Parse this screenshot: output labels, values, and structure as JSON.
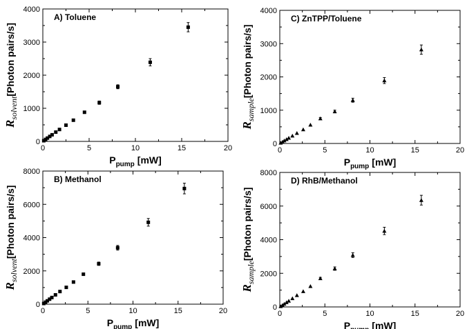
{
  "chart_data": [
    {
      "id": "A",
      "type": "scatter",
      "marker": "square",
      "title": "A) Toluene",
      "xlabel": {
        "main": "P",
        "sub": "pump",
        "unit": "[mW]"
      },
      "ylabel": {
        "main": "R",
        "sub": "solvent",
        "unit": "[Photon pairs/s]"
      },
      "xlim": [
        0,
        20
      ],
      "ylim": [
        0,
        4000
      ],
      "xticks": [
        0,
        5,
        10,
        15,
        20
      ],
      "yticks": [
        0,
        1000,
        2000,
        3000,
        4000
      ],
      "grid": false,
      "points": [
        {
          "x": 0.1,
          "y": 20,
          "err": 0
        },
        {
          "x": 0.3,
          "y": 60,
          "err": 0
        },
        {
          "x": 0.5,
          "y": 100,
          "err": 0
        },
        {
          "x": 0.75,
          "y": 150,
          "err": 0
        },
        {
          "x": 1.0,
          "y": 200,
          "err": 0
        },
        {
          "x": 1.4,
          "y": 280,
          "err": 0
        },
        {
          "x": 1.8,
          "y": 360,
          "err": 0
        },
        {
          "x": 2.5,
          "y": 490,
          "err": 0
        },
        {
          "x": 3.3,
          "y": 640,
          "err": 0
        },
        {
          "x": 4.5,
          "y": 880,
          "err": 30
        },
        {
          "x": 6.1,
          "y": 1170,
          "err": 50
        },
        {
          "x": 8.1,
          "y": 1650,
          "err": 60
        },
        {
          "x": 11.6,
          "y": 2390,
          "err": 110
        },
        {
          "x": 15.7,
          "y": 3450,
          "err": 140
        }
      ]
    },
    {
      "id": "B",
      "type": "scatter",
      "marker": "square",
      "title": "B) Methanol",
      "xlabel": {
        "main": "P",
        "sub": "pump",
        "unit": "[mW]"
      },
      "ylabel": {
        "main": "R",
        "sub": "solvent",
        "unit": "[Photon pairs/s]"
      },
      "xlim": [
        0,
        20
      ],
      "ylim": [
        0,
        8000
      ],
      "xticks": [
        0,
        5,
        10,
        15,
        20
      ],
      "yticks": [
        0,
        2000,
        4000,
        6000,
        8000
      ],
      "grid": false,
      "points": [
        {
          "x": 0.1,
          "y": 40,
          "err": 0
        },
        {
          "x": 0.3,
          "y": 120,
          "err": 0
        },
        {
          "x": 0.5,
          "y": 200,
          "err": 0
        },
        {
          "x": 0.75,
          "y": 300,
          "err": 0
        },
        {
          "x": 1.0,
          "y": 400,
          "err": 0
        },
        {
          "x": 1.4,
          "y": 560,
          "err": 0
        },
        {
          "x": 1.9,
          "y": 760,
          "err": 0
        },
        {
          "x": 2.6,
          "y": 1010,
          "err": 0
        },
        {
          "x": 3.4,
          "y": 1330,
          "err": 0
        },
        {
          "x": 4.5,
          "y": 1800,
          "err": 60
        },
        {
          "x": 6.2,
          "y": 2430,
          "err": 100
        },
        {
          "x": 8.3,
          "y": 3390,
          "err": 140
        },
        {
          "x": 11.7,
          "y": 4920,
          "err": 230
        },
        {
          "x": 15.7,
          "y": 6950,
          "err": 320
        }
      ]
    },
    {
      "id": "C",
      "type": "scatter",
      "marker": "triangle",
      "title": "C) ZnTPP/Toluene",
      "xlabel": {
        "main": "P",
        "sub": "pump",
        "unit": "[mW]"
      },
      "ylabel": {
        "main": "R",
        "sub": "sample",
        "unit": "[Photon pairs/s]"
      },
      "xlim": [
        0,
        20
      ],
      "ylim": [
        0,
        4000
      ],
      "xticks": [
        0,
        5,
        10,
        15,
        20
      ],
      "yticks": [
        0,
        1000,
        2000,
        3000,
        4000
      ],
      "grid": false,
      "points": [
        {
          "x": 0.1,
          "y": 17,
          "err": 0
        },
        {
          "x": 0.3,
          "y": 50,
          "err": 0
        },
        {
          "x": 0.5,
          "y": 85,
          "err": 0
        },
        {
          "x": 0.75,
          "y": 125,
          "err": 0
        },
        {
          "x": 1.0,
          "y": 165,
          "err": 0
        },
        {
          "x": 1.4,
          "y": 230,
          "err": 0
        },
        {
          "x": 1.9,
          "y": 310,
          "err": 0
        },
        {
          "x": 2.6,
          "y": 420,
          "err": 0
        },
        {
          "x": 3.4,
          "y": 560,
          "err": 0
        },
        {
          "x": 4.5,
          "y": 750,
          "err": 30
        },
        {
          "x": 6.1,
          "y": 960,
          "err": 40
        },
        {
          "x": 8.1,
          "y": 1300,
          "err": 60
        },
        {
          "x": 11.6,
          "y": 1890,
          "err": 90
        },
        {
          "x": 15.7,
          "y": 2820,
          "err": 140
        }
      ]
    },
    {
      "id": "D",
      "type": "scatter",
      "marker": "triangle",
      "title": "D) RhB/Methanol",
      "xlabel": {
        "main": "P",
        "sub": "pump",
        "unit": "[mW]"
      },
      "ylabel": {
        "main": "R",
        "sub": "sample",
        "unit": "[Photon pairs/s]"
      },
      "xlim": [
        0,
        20
      ],
      "ylim": [
        0,
        8000
      ],
      "xticks": [
        0,
        5,
        10,
        15,
        20
      ],
      "yticks": [
        0,
        2000,
        4000,
        6000,
        8000
      ],
      "grid": false,
      "points": [
        {
          "x": 0.1,
          "y": 35,
          "err": 0
        },
        {
          "x": 0.3,
          "y": 110,
          "err": 0
        },
        {
          "x": 0.5,
          "y": 180,
          "err": 0
        },
        {
          "x": 0.75,
          "y": 270,
          "err": 0
        },
        {
          "x": 1.0,
          "y": 360,
          "err": 0
        },
        {
          "x": 1.4,
          "y": 510,
          "err": 0
        },
        {
          "x": 1.9,
          "y": 690,
          "err": 0
        },
        {
          "x": 2.6,
          "y": 930,
          "err": 0
        },
        {
          "x": 3.4,
          "y": 1230,
          "err": 0
        },
        {
          "x": 4.5,
          "y": 1700,
          "err": 60
        },
        {
          "x": 6.1,
          "y": 2280,
          "err": 100
        },
        {
          "x": 8.1,
          "y": 3080,
          "err": 140
        },
        {
          "x": 11.6,
          "y": 4520,
          "err": 220
        },
        {
          "x": 15.7,
          "y": 6350,
          "err": 290
        }
      ]
    }
  ]
}
